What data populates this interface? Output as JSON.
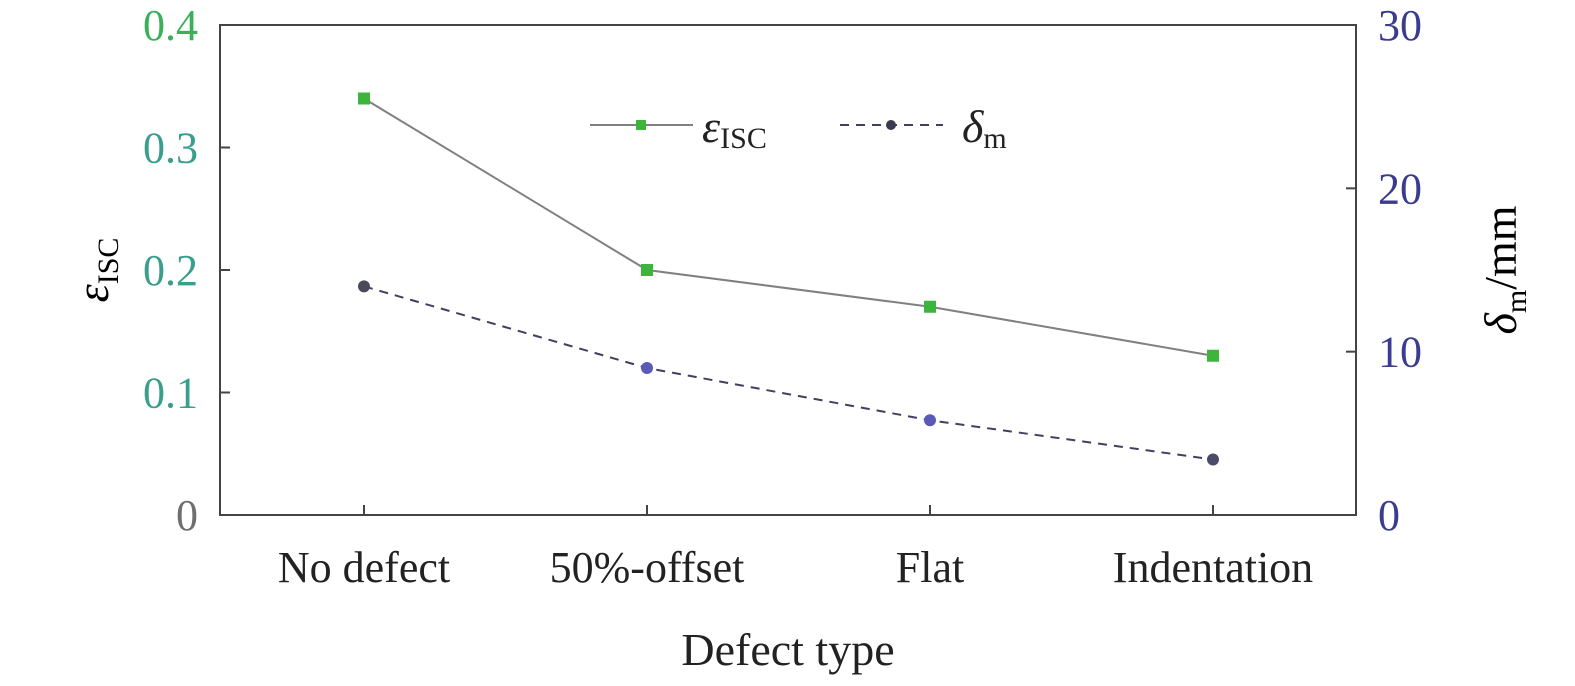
{
  "chart_data": {
    "type": "line",
    "categories": [
      "No defect",
      "50%-offset",
      "Flat",
      "Indentation"
    ],
    "xlabel": "Defect type",
    "y_left": {
      "label_main": "ε",
      "label_sub": "ISC",
      "ylim": [
        0,
        0.4
      ],
      "ticks": [
        "0",
        "0.1",
        "0.2",
        "0.3",
        "0.4"
      ],
      "color": "#3a9e8c"
    },
    "y_right": {
      "label_main": "δ",
      "label_sub": "m",
      "label_unit": "/mm",
      "ylim": [
        0,
        30
      ],
      "ticks": [
        "0",
        "10",
        "20",
        "30"
      ],
      "color": "#3b3b8f"
    },
    "series": [
      {
        "name_main": "ε",
        "name_sub": "ISC",
        "axis": "left",
        "values": [
          0.34,
          0.2,
          0.17,
          0.13
        ],
        "line_color": "#808080",
        "marker_color": "#3db53d",
        "marker": "square",
        "dash": "solid"
      },
      {
        "name_main": "δ",
        "name_sub": "m",
        "axis": "right",
        "values": [
          14,
          9,
          5.8,
          3.4
        ],
        "line_color": "#404060",
        "marker_colors": [
          "#4a4a5a",
          "#5a5ab8",
          "#5a5ab8",
          "#4a4a6a"
        ],
        "marker": "circle",
        "dash": "dashed"
      }
    ],
    "legend_position": "top-center",
    "grid": false
  }
}
